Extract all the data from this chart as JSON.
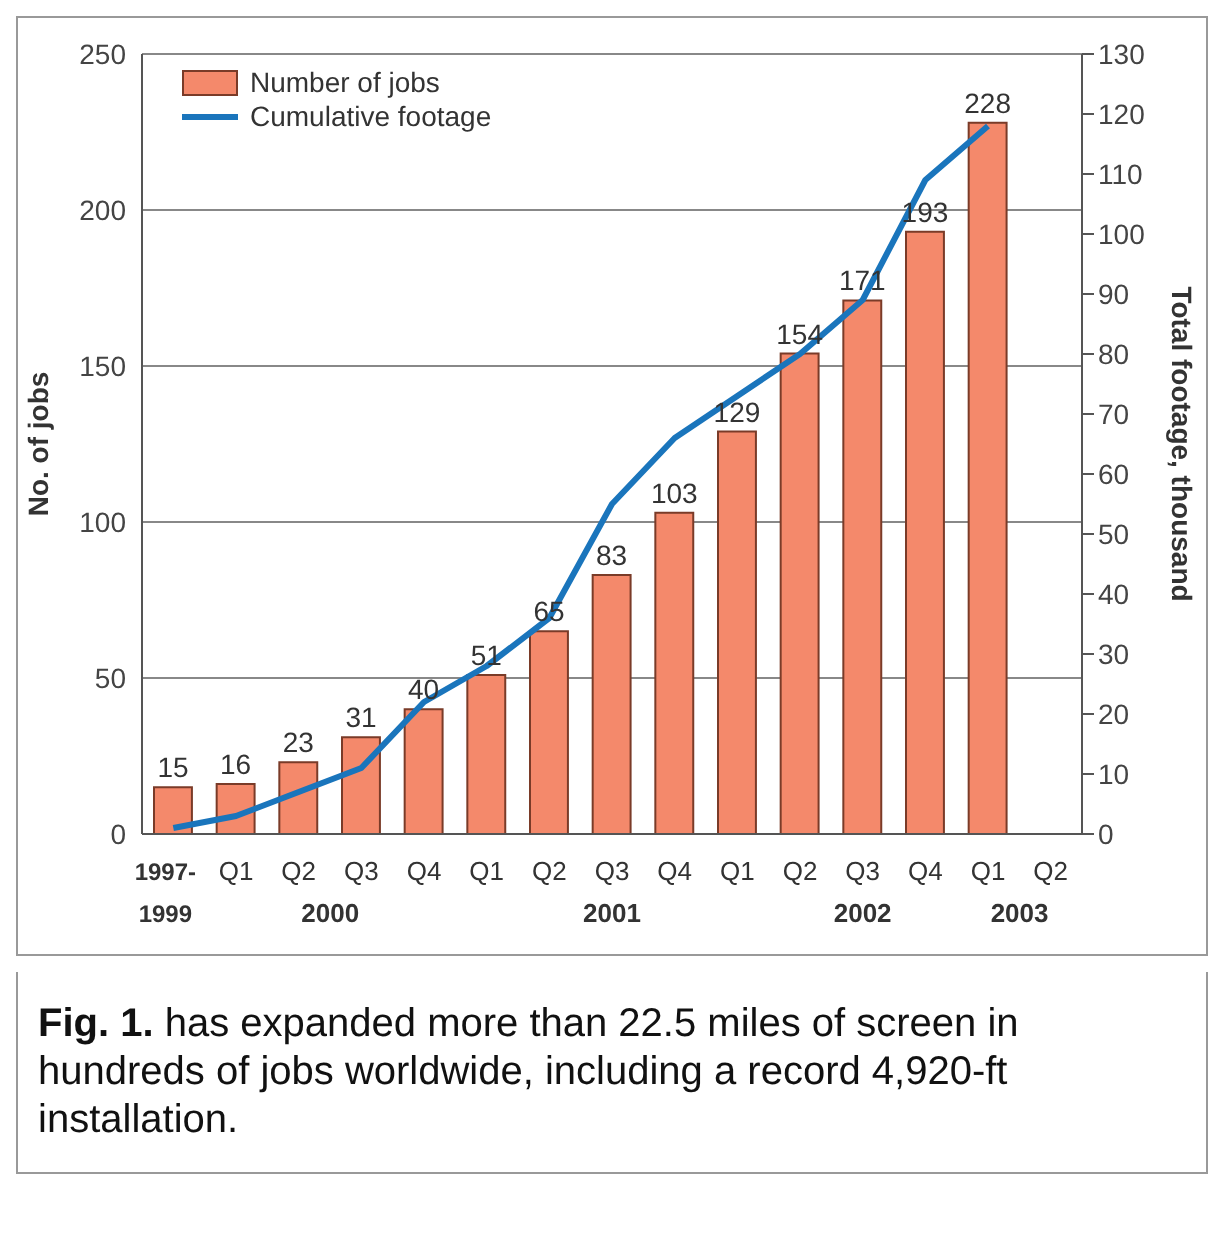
{
  "chart_data": {
    "type": "bar",
    "title": "Fig. 1.",
    "ylabel": "No. of jobs",
    "y2label": "Total footage, thousand",
    "categories": [
      "1997-1999",
      "Q1",
      "Q2",
      "Q3",
      "Q4",
      "Q1",
      "Q2",
      "Q3",
      "Q4",
      "Q1",
      "Q2",
      "Q3",
      "Q4",
      "Q1",
      "Q2"
    ],
    "series": [
      {
        "name": "Number of jobs",
        "color": "#f4896b",
        "values": [
          15,
          16,
          23,
          31,
          40,
          51,
          65,
          83,
          103,
          129,
          154,
          171,
          193,
          228,
          null
        ],
        "value_labels": [
          "15",
          "16",
          "23",
          "31",
          "40",
          "51",
          "65",
          "83",
          "103",
          "129",
          "154",
          "171",
          "193",
          "228",
          null
        ]
      },
      {
        "name": "Cumulative footage",
        "type": "line",
        "axis": "y2",
        "color": "#1a75bc",
        "values": [
          1,
          3,
          7,
          11,
          22,
          28,
          36,
          55,
          66,
          73,
          80,
          89,
          109,
          118,
          null
        ]
      }
    ],
    "ylim": [
      0,
      250
    ],
    "yticks": [
      0,
      50,
      100,
      150,
      200,
      250
    ],
    "y2lim": [
      0,
      130
    ],
    "y2ticks": [
      0,
      10,
      20,
      30,
      40,
      50,
      60,
      70,
      80,
      90,
      100,
      110,
      120,
      130
    ],
    "grid": "y",
    "legend": "top left",
    "marker": "none",
    "annotations": [
      "2000",
      "2001",
      "2002",
      "2003",
      "has expanded more than 22.5 miles of screen in hundreds of jobs worldwide, including a record 4,920-ft installation."
    ]
  }
}
